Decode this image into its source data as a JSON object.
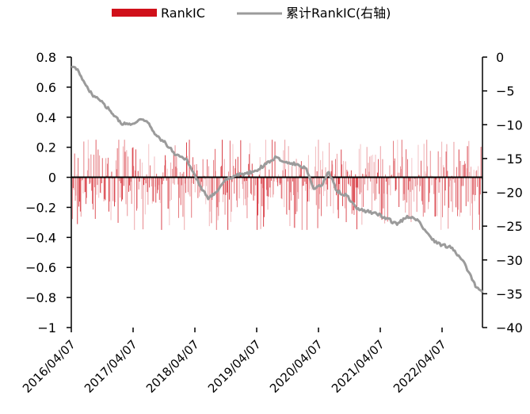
{
  "chart_data": {
    "type": "bar+line",
    "title": "",
    "legend": [
      {
        "label": "RankIC",
        "color": "#d0101a",
        "kind": "bar"
      },
      {
        "label": "累计RankIC(右轴)",
        "color": "#9b9b9b",
        "kind": "line"
      }
    ],
    "legend_position": "top-center",
    "x_ticks": [
      "2016/04/07",
      "2017/04/07",
      "2018/04/07",
      "2019/04/07",
      "2020/04/07",
      "2021/04/07",
      "2022/04/07"
    ],
    "x_range": [
      "2016/04/07",
      "2023/01/31"
    ],
    "left_axis": {
      "ylim": [
        -1,
        0.8
      ],
      "ticks": [
        0.8,
        0.6,
        0.4,
        0.2,
        0,
        -0.2,
        -0.4,
        -0.6,
        -0.8,
        -1
      ],
      "tick_labels": [
        "0.8",
        "0.6",
        "0.4",
        "0.2",
        "0",
        "−0.2",
        "−0.4",
        "−0.6",
        "−0.8",
        "−1"
      ]
    },
    "right_axis": {
      "ylim": [
        -40,
        0
      ],
      "ticks": [
        0,
        -5,
        -10,
        -15,
        -20,
        -25,
        -30,
        -35,
        -40
      ],
      "tick_labels": [
        "0",
        "−5",
        "−10",
        "−15",
        "−20",
        "−25",
        "−30",
        "−35",
        "−40"
      ]
    },
    "rank_ic_range": [
      -0.35,
      0.25
    ],
    "cumulative_rank_ic": {
      "name": "累计RankIC(右轴)",
      "points": [
        [
          "2016/04/07",
          -1.5
        ],
        [
          "2016/05/15",
          -1.8
        ],
        [
          "2016/06/20",
          -3.5
        ],
        [
          "2016/08/10",
          -5.5
        ],
        [
          "2016/10/01",
          -6.5
        ],
        [
          "2016/12/01",
          -8.0
        ],
        [
          "2017/02/01",
          -9.8
        ],
        [
          "2017/04/01",
          -10.0
        ],
        [
          "2017/06/01",
          -9.2
        ],
        [
          "2017/07/15",
          -9.7
        ],
        [
          "2017/09/01",
          -11.5
        ],
        [
          "2017/11/01",
          -12.8
        ],
        [
          "2018/01/01",
          -14.5
        ],
        [
          "2018/03/01",
          -15.0
        ],
        [
          "2018/04/15",
          -17.0
        ],
        [
          "2018/06/01",
          -19.2
        ],
        [
          "2018/07/15",
          -21.0
        ],
        [
          "2018/09/01",
          -20.0
        ],
        [
          "2018/11/01",
          -18.0
        ],
        [
          "2019/01/01",
          -17.5
        ],
        [
          "2019/03/01",
          -17.2
        ],
        [
          "2019/05/01",
          -16.8
        ],
        [
          "2019/07/01",
          -15.8
        ],
        [
          "2019/09/01",
          -14.8
        ],
        [
          "2019/11/01",
          -15.5
        ],
        [
          "2020/01/15",
          -16.0
        ],
        [
          "2020/03/01",
          -16.5
        ],
        [
          "2020/04/15",
          -19.5
        ],
        [
          "2020/06/01",
          -19.0
        ],
        [
          "2020/07/15",
          -17.0
        ],
        [
          "2020/09/01",
          -19.8
        ],
        [
          "2020/11/01",
          -20.5
        ],
        [
          "2021/01/01",
          -22.5
        ],
        [
          "2021/03/01",
          -22.8
        ],
        [
          "2021/05/01",
          -23.2
        ],
        [
          "2021/07/01",
          -23.8
        ],
        [
          "2021/09/01",
          -24.8
        ],
        [
          "2021/11/01",
          -23.5
        ],
        [
          "2022/01/01",
          -24.0
        ],
        [
          "2022/02/15",
          -25.5
        ],
        [
          "2022/04/01",
          -27.0
        ],
        [
          "2022/06/01",
          -27.8
        ],
        [
          "2022/08/01",
          -28.2
        ],
        [
          "2022/10/01",
          -30.0
        ],
        [
          "2022/11/15",
          -32.0
        ],
        [
          "2022/12/20",
          -34.0
        ],
        [
          "2023/01/31",
          -34.8
        ]
      ]
    }
  }
}
